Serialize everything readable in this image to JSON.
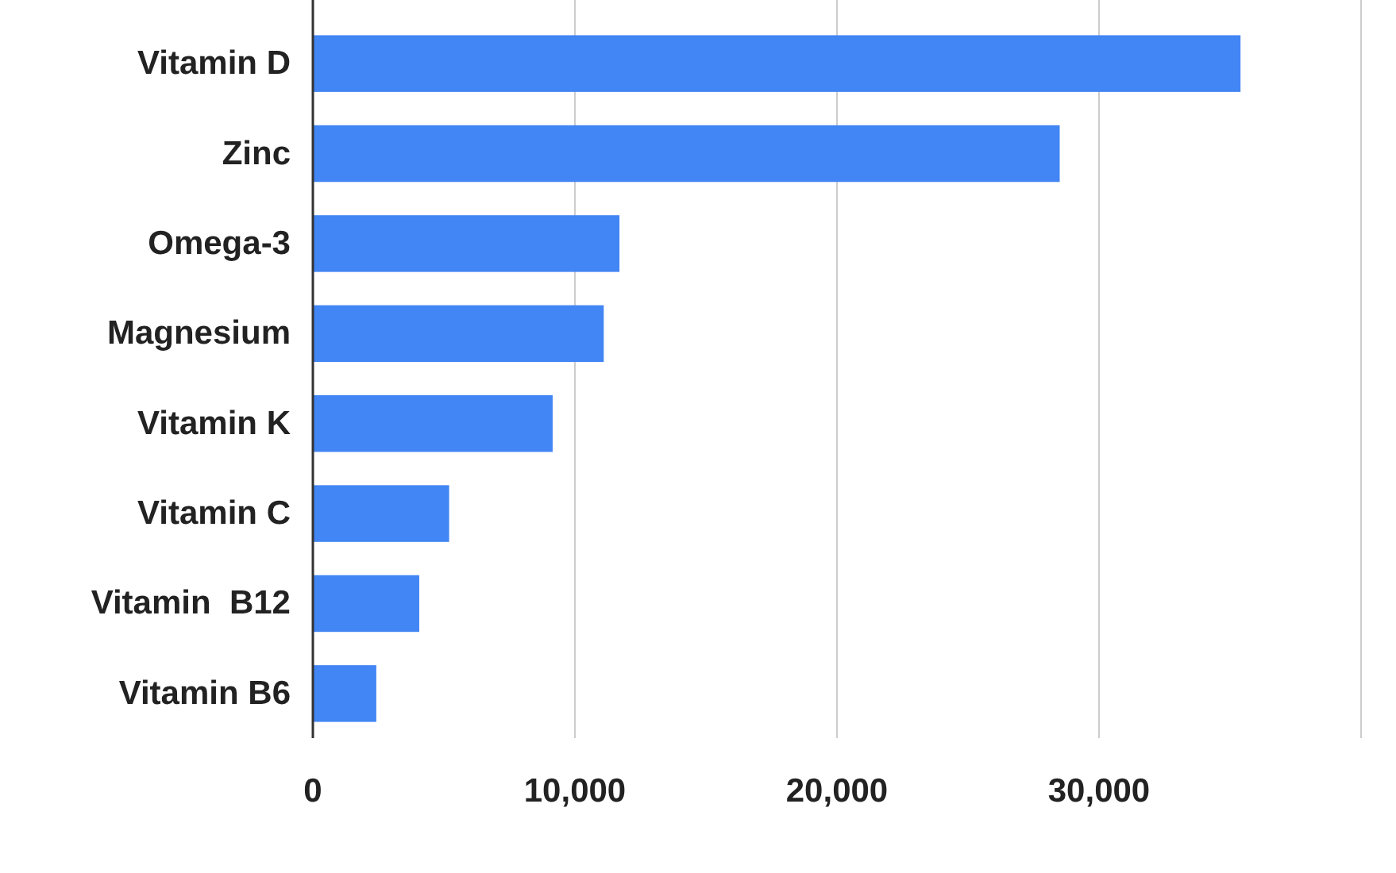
{
  "chart_data": {
    "type": "bar",
    "orientation": "horizontal",
    "categories": [
      "Vitamin D",
      "Zinc",
      "Omega-3",
      "Magnesium",
      "Vitamin K",
      "Vitamin C",
      "Vitamin  B12",
      "Vitamin B6"
    ],
    "values": [
      35400,
      28500,
      11700,
      11100,
      9150,
      5200,
      4060,
      2420
    ],
    "color": "#4285f4",
    "xlim": [
      0,
      40000
    ],
    "xticks": [
      {
        "value": 0,
        "label": "0"
      },
      {
        "value": 10000,
        "label": "10,000"
      },
      {
        "value": 20000,
        "label": "20,000"
      },
      {
        "value": 30000,
        "label": "30,000"
      },
      {
        "value": 40000,
        "label": null
      }
    ],
    "grid": "x"
  }
}
